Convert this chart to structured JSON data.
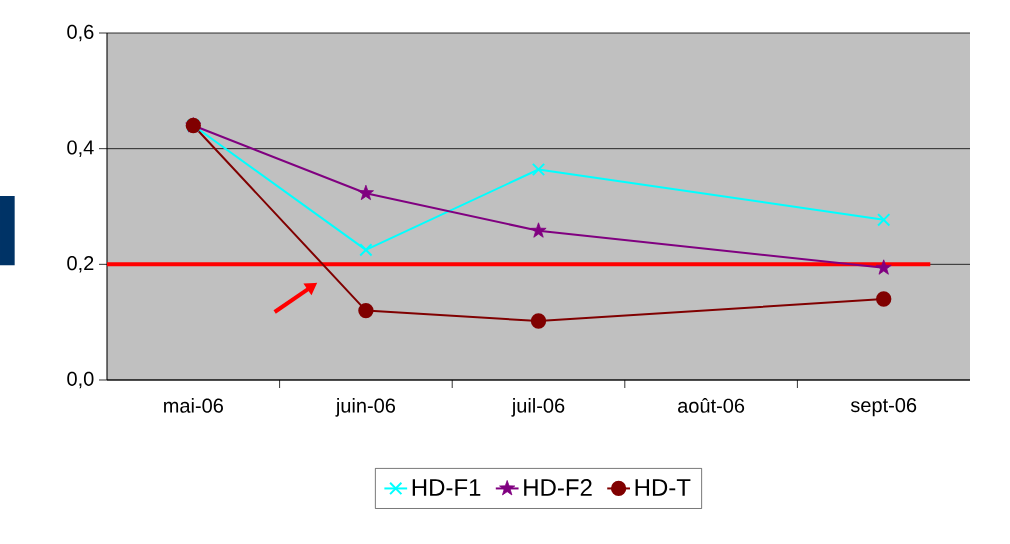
{
  "chart_data": {
    "type": "line",
    "categories": [
      "mai-06",
      "juin-06",
      "juil-06",
      "août-06",
      "sept-06"
    ],
    "series": [
      {
        "name": "HD-F1",
        "color": "#00ffff",
        "marker": "cross",
        "values": [
          0.44,
          0.225,
          0.364,
          null,
          0.277
        ]
      },
      {
        "name": "HD-F2",
        "color": "#800080",
        "marker": "star",
        "values": [
          0.44,
          0.323,
          0.258,
          null,
          0.194
        ]
      },
      {
        "name": "HD-T",
        "color": "#800000",
        "marker": "circle",
        "values": [
          0.44,
          0.12,
          0.102,
          null,
          0.14
        ]
      }
    ],
    "ylim": [
      0,
      0.6
    ],
    "yticks": [
      {
        "value": 0,
        "label": "0,0"
      },
      {
        "value": 0.2,
        "label": "0,2"
      },
      {
        "value": 0.4,
        "label": "0,4"
      },
      {
        "value": 0.6,
        "label": "0,6"
      }
    ],
    "grid": "y",
    "legend": "bottom",
    "ref_lines": [
      {
        "axis": "y",
        "value": 0.2,
        "color": "#ff0000"
      }
    ]
  }
}
